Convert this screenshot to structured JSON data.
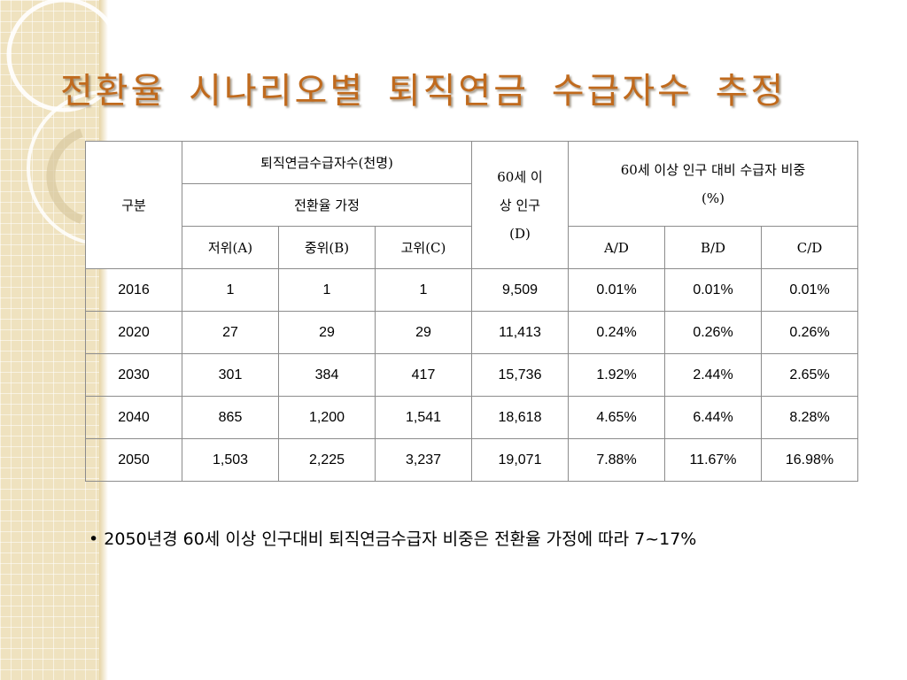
{
  "title": "전환율 시나리오별 퇴직연금 수급자수 추정",
  "table": {
    "header": {
      "category": "구분",
      "recipients_group": "퇴직연금수급자수(천명)",
      "conversion_assumption": "전환율 가정",
      "low": "저위(A)",
      "mid": "중위(B)",
      "high": "고위(C)",
      "population_line1": "60세 이",
      "population_line2": "상 인구",
      "population_line3": "(D)",
      "ratio_group_line1": "60세 이상 인구 대비 수급자 비중",
      "ratio_group_line2": "(%)",
      "ad": "A/D",
      "bd": "B/D",
      "cd": "C/D"
    },
    "rows": [
      {
        "year": "2016",
        "a": "1",
        "b": "1",
        "c": "1",
        "d": "9,509",
        "ad": "0.01%",
        "bd": "0.01%",
        "cd": "0.01%"
      },
      {
        "year": "2020",
        "a": "27",
        "b": "29",
        "c": "29",
        "d": "11,413",
        "ad": "0.24%",
        "bd": "0.26%",
        "cd": "0.26%"
      },
      {
        "year": "2030",
        "a": "301",
        "b": "384",
        "c": "417",
        "d": "15,736",
        "ad": "1.92%",
        "bd": "2.44%",
        "cd": "2.65%"
      },
      {
        "year": "2040",
        "a": "865",
        "b": "1,200",
        "c": "1,541",
        "d": "18,618",
        "ad": "4.65%",
        "bd": "6.44%",
        "cd": "8.28%"
      },
      {
        "year": "2050",
        "a": "1,503",
        "b": "2,225",
        "c": "3,237",
        "d": "19,071",
        "ad": "7.88%",
        "bd": "11.67%",
        "cd": "16.98%"
      }
    ]
  },
  "bullet": {
    "marker": "•",
    "text": "2050년경 60세 이상 인구대비 퇴직연금수급자 비중은 전환율 가정에 따라 7~17%"
  },
  "colors": {
    "title": "#c06a1d",
    "band": "#efe2bf",
    "border": "#8c8c8c"
  }
}
